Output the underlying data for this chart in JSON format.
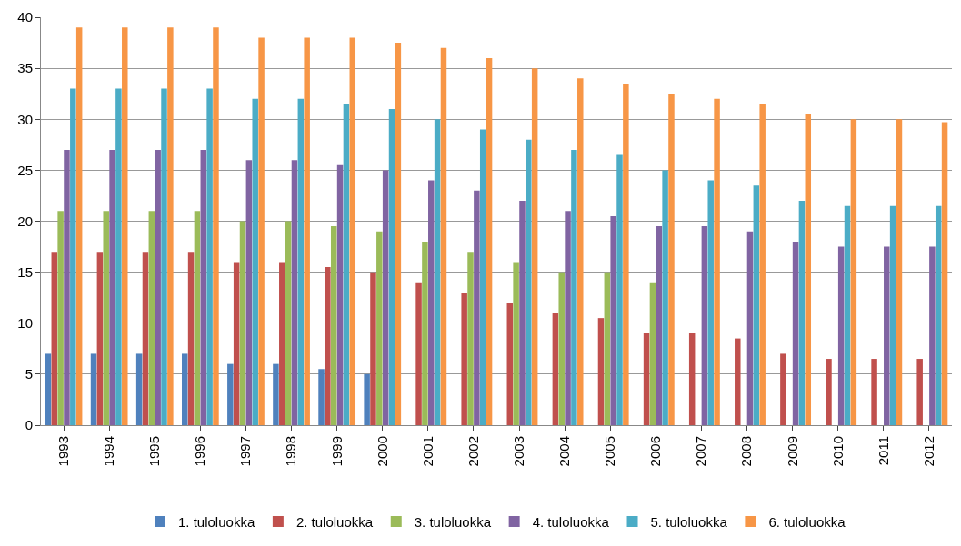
{
  "chart_data": {
    "type": "bar",
    "categories": [
      "1993",
      "1994",
      "1995",
      "1996",
      "1997",
      "1998",
      "1999",
      "2000",
      "2001",
      "2002",
      "2003",
      "2004",
      "2005",
      "2006",
      "2007",
      "2008",
      "2009",
      "2010",
      "2011",
      "2012"
    ],
    "series": [
      {
        "name": "1. tuloluokka",
        "color": "#4f81bd",
        "values": [
          7,
          7,
          7,
          7,
          6,
          6,
          5.5,
          5,
          null,
          null,
          null,
          null,
          null,
          null,
          null,
          null,
          null,
          null,
          null,
          null
        ]
      },
      {
        "name": "2. tuloluokka",
        "color": "#c0504d",
        "values": [
          17,
          17,
          17,
          17,
          16,
          16,
          15.5,
          15,
          14,
          13,
          12,
          11,
          10.5,
          9,
          9,
          8.5,
          7,
          6.5,
          6.5,
          6.5
        ]
      },
      {
        "name": "3. tuloluokka",
        "color": "#9bbb59",
        "values": [
          21,
          21,
          21,
          21,
          20,
          20,
          19.5,
          19,
          18,
          17,
          16,
          15,
          15,
          14,
          null,
          null,
          null,
          null,
          null,
          null
        ]
      },
      {
        "name": "4. tuloluokka",
        "color": "#8064a2",
        "values": [
          27,
          27,
          27,
          27,
          26,
          26,
          25.5,
          25,
          24,
          23,
          22,
          21,
          20.5,
          19.5,
          19.5,
          19,
          18,
          17.5,
          17.5,
          17.5
        ]
      },
      {
        "name": "5. tuloluokka",
        "color": "#4bacc6",
        "values": [
          33,
          33,
          33,
          33,
          32,
          32,
          31.5,
          31,
          30,
          29,
          28,
          27,
          26.5,
          25,
          24,
          23.5,
          22,
          21.5,
          21.5,
          21.5
        ]
      },
      {
        "name": "6. tuloluokka",
        "color": "#f79646",
        "values": [
          39,
          39,
          39,
          39,
          38,
          38,
          38,
          37.5,
          37,
          36,
          35,
          34,
          33.5,
          32.5,
          32,
          31.5,
          30.5,
          30,
          30,
          29.7
        ]
      }
    ],
    "ylim": [
      0,
      40
    ],
    "yticks": [
      0,
      5,
      10,
      15,
      20,
      25,
      30,
      35,
      40
    ],
    "grid": "y",
    "legend": "bottom"
  }
}
